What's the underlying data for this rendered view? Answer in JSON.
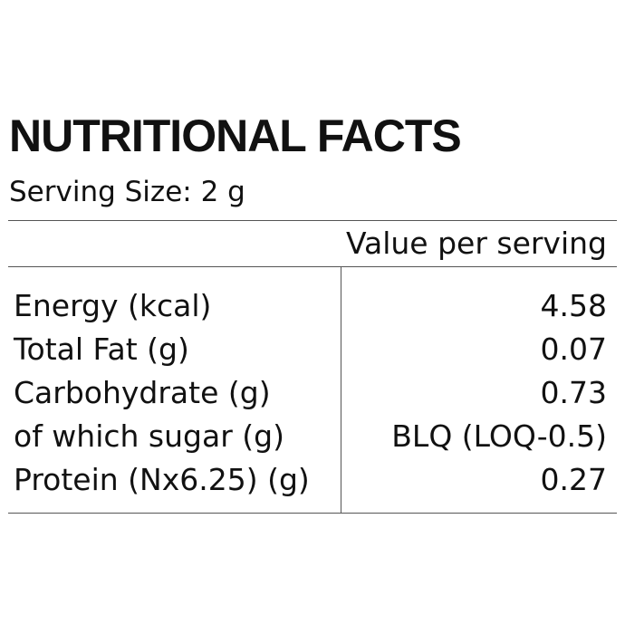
{
  "label": {
    "title": "NUTRITIONAL FACTS",
    "serving_size": "Serving Size: 2 g",
    "column_header": "Value per serving",
    "rows": [
      {
        "nutrient": "Energy (kcal)",
        "value": "4.58"
      },
      {
        "nutrient": "Total Fat (g)",
        "value": "0.07"
      },
      {
        "nutrient": "Carbohydrate (g)",
        "value": "0.73"
      },
      {
        "nutrient": "of which sugar (g)",
        "value": "BLQ (LOQ-0.5)"
      },
      {
        "nutrient": "Protein (Nx6.25) (g)",
        "value": "0.27"
      }
    ]
  }
}
